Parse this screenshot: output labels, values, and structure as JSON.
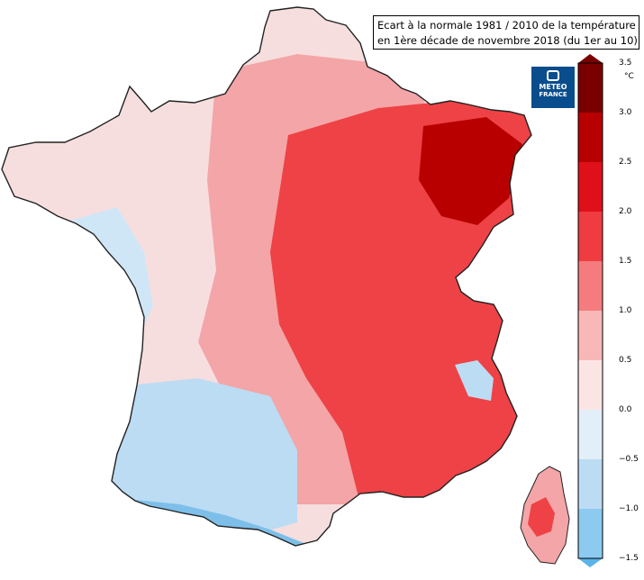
{
  "title": {
    "line1": "Ecart à la normale 1981 / 2010 de la température",
    "line2": "en 1ère décade de novembre 2018 (du 1er au 10)"
  },
  "logo": {
    "line1": "METEO",
    "line2": "FRANCE",
    "icon": "meteo-france-icon"
  },
  "legend": {
    "unit": "°C",
    "ticks": [
      "3.5",
      "3.0",
      "2.5",
      "2.0",
      "1.5",
      "1.0",
      "0.5",
      "0.0",
      "−0.5",
      "−1.0",
      "−1.5"
    ],
    "colors": [
      "#7a0000",
      "#b80000",
      "#e0101a",
      "#ee3c40",
      "#f47c7e",
      "#f9b8b8",
      "#fbe4e4",
      "#e2eef8",
      "#bcdcf3",
      "#8ccaf0",
      "#5ab4e8"
    ]
  },
  "map_colors": {
    "west_pale": "#f6dede",
    "west_blue": "#cfe6f7",
    "southwest_blue": "#bcdcf3",
    "coast_blue": "#7dbfe8",
    "center_pink": "#f4a5a7",
    "east_red": "#ee4246",
    "northeast_dark": "#b80000",
    "outline": "#222222"
  }
}
